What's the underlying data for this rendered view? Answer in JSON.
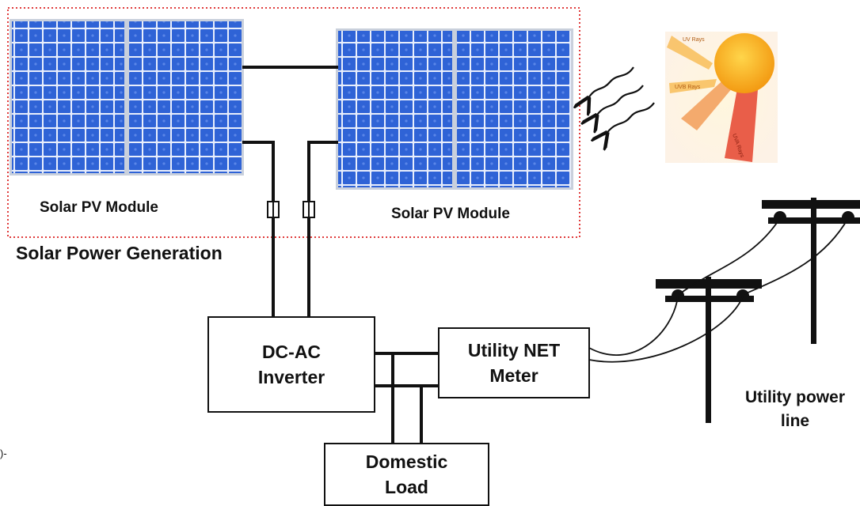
{
  "modules": {
    "left_label": "Solar PV Module",
    "right_label": "Solar PV Module"
  },
  "generation": {
    "label": "Solar Power Generation"
  },
  "inverter": {
    "line1": "DC-AC",
    "line2": "Inverter"
  },
  "meter": {
    "line1": "Utility NET",
    "line2": "Meter"
  },
  "load": {
    "line1": "Domestic",
    "line2": "Load"
  },
  "utility": {
    "line1": "Utility power",
    "line2": "line"
  },
  "sun": {
    "ray1": "UV Rays",
    "ray2": "UVB Rays",
    "ray3": "UVA Rays"
  },
  "edge_fragment": ")-",
  "colors": {
    "panel_frame": "#c9d0dc",
    "cell": "#2f63d6",
    "cell_grid": "#e8eefc",
    "dotted_border": "#e03c3c",
    "sun": "#f6a21c",
    "sun_glow": "#fff0c8"
  }
}
